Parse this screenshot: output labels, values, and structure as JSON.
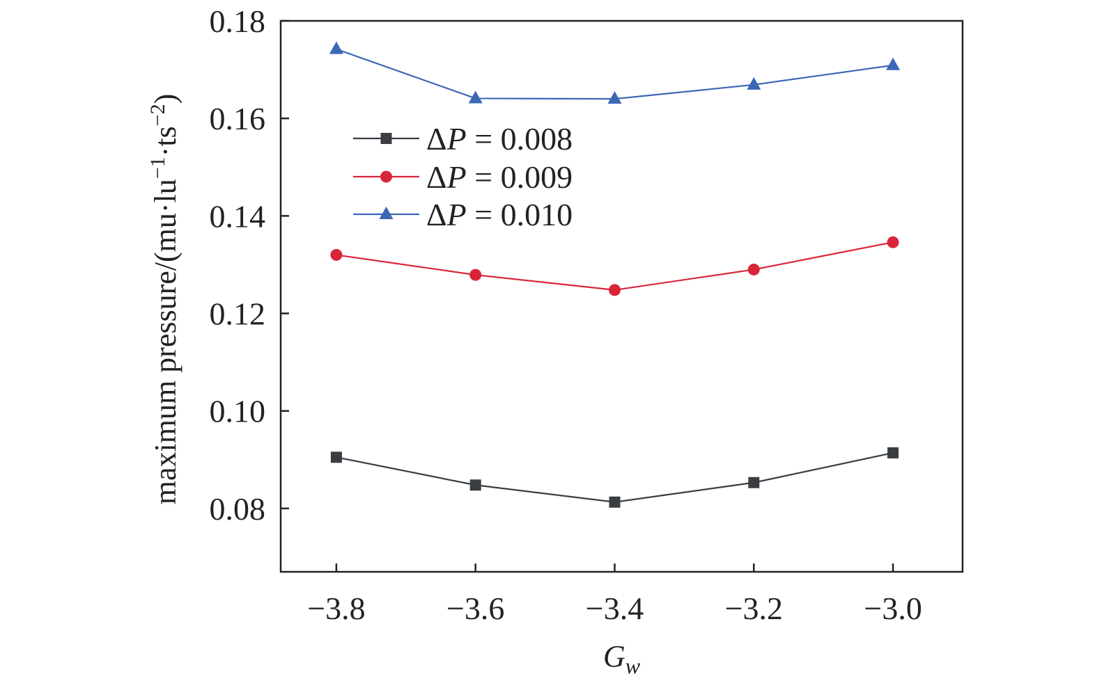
{
  "chart_data": {
    "type": "line",
    "x": [
      -3.8,
      -3.6,
      -3.4,
      -3.2,
      -3.0
    ],
    "x_tick_values": [
      -3.8,
      -3.6,
      -3.4,
      -3.2,
      -3.0
    ],
    "x_tick_labels": [
      "−3.8",
      "−3.6",
      "−3.4",
      "−3.2",
      "−3.0"
    ],
    "y_tick_values": [
      0.08,
      0.1,
      0.12,
      0.14,
      0.16,
      0.18
    ],
    "y_tick_labels": [
      "0.08",
      "0.10",
      "0.12",
      "0.14",
      "0.16",
      "0.18"
    ],
    "xlim": [
      -3.88,
      -2.9
    ],
    "ylim": [
      0.067,
      0.18
    ],
    "xlabel": "G",
    "xlabel_subscript": "w",
    "ylabel": "maximum pressure/(mu·lu",
    "ylabel_sup1": "−1",
    "ylabel_mid": "·ts",
    "ylabel_sup2": "−2",
    "ylabel_end": ")",
    "grid": false,
    "legend_position": "upper-left",
    "series": [
      {
        "name": "0.008",
        "legend_prefix": "Δ",
        "legend_var": "P",
        "legend_eq": " = ",
        "color": "#3a3d42",
        "marker": "square",
        "values": [
          0.0905,
          0.0848,
          0.0813,
          0.0853,
          0.0914
        ]
      },
      {
        "name": "0.009",
        "legend_prefix": "Δ",
        "legend_var": "P",
        "legend_eq": " = ",
        "color": "#d9253a",
        "marker": "circle",
        "values": [
          0.132,
          0.1279,
          0.1248,
          0.129,
          0.1346
        ]
      },
      {
        "name": "0.010",
        "legend_prefix": "Δ",
        "legend_var": "P",
        "legend_eq": " = ",
        "color": "#3b67b5",
        "marker": "triangle",
        "values": [
          0.1742,
          0.1641,
          0.164,
          0.1669,
          0.1709
        ]
      }
    ]
  }
}
